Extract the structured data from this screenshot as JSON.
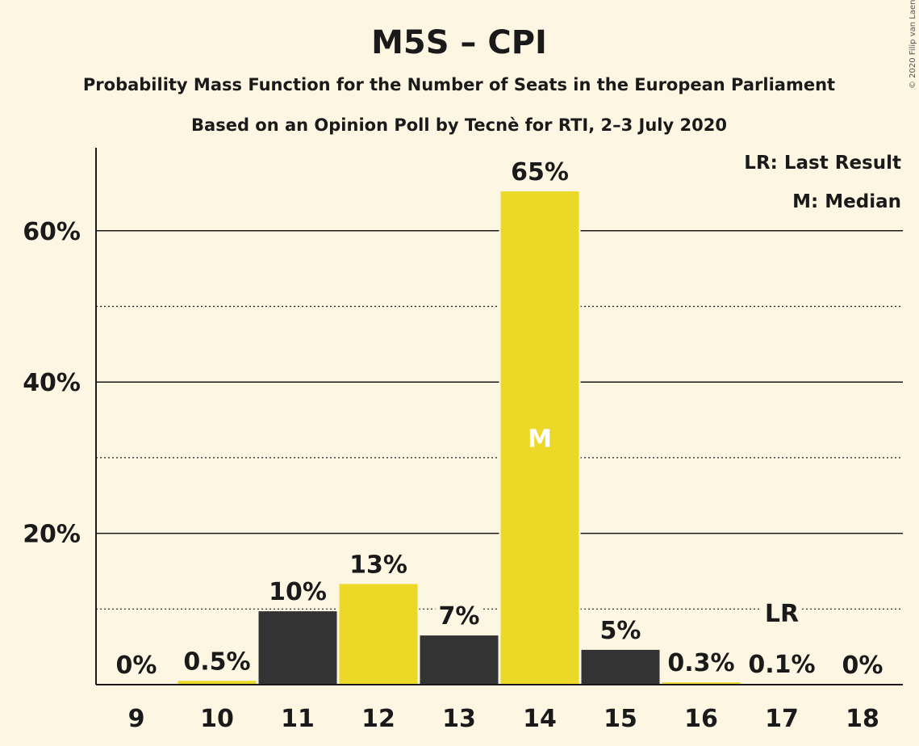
{
  "title": "M5S – CPI",
  "subtitle1": "Probability Mass Function for the Number of Seats in the European Parliament",
  "subtitle2": "Based on an Opinion Poll by Tecnè for RTI, 2–3 July 2020",
  "copyright": "© 2020 Filip van Laenen",
  "legend": {
    "lr": "LR: Last Result",
    "m": "M: Median"
  },
  "colors": {
    "background": "#fdf6e3",
    "dark_bar": "#333333",
    "yellow_bar": "#ecd826"
  },
  "chart_data": {
    "type": "bar",
    "title": "M5S – CPI",
    "categories": [
      "9",
      "10",
      "11",
      "12",
      "13",
      "14",
      "15",
      "16",
      "17",
      "18"
    ],
    "values": [
      0,
      0.5,
      9.7,
      13.3,
      6.5,
      65.2,
      4.6,
      0.3,
      0.1,
      0
    ],
    "data_labels": [
      "0%",
      "0.5%",
      "10%",
      "13%",
      "7%",
      "65%",
      "5%",
      "0.3%",
      "0.1%",
      "0%"
    ],
    "bar_colors": [
      "yellow",
      "yellow",
      "dark",
      "yellow",
      "dark",
      "yellow",
      "dark",
      "yellow",
      "dark",
      "yellow"
    ],
    "ylim": [
      0,
      70
    ],
    "yticks": [
      20,
      40,
      60
    ],
    "ytick_labels": [
      "20%",
      "40%",
      "60%"
    ],
    "minor_gridlines": [
      10,
      30,
      50
    ],
    "grid": true,
    "median_category": "14",
    "median_marker": "M",
    "last_result_category": "17",
    "last_result_marker": "LR",
    "legend_position": "top-right"
  }
}
